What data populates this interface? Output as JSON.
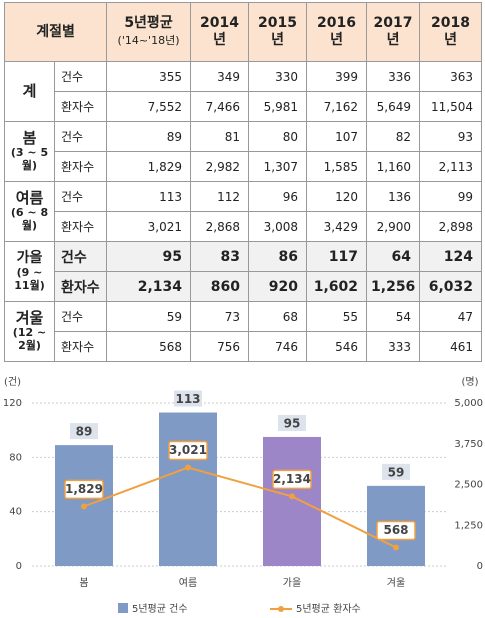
{
  "table": {
    "header": [
      "계절별",
      "5년평균",
      "('14~'18년)",
      "2014\n년",
      "2015\n년",
      "2016\n년",
      "2017\n년",
      "2018\n년"
    ],
    "groups": [
      {
        "season": "계",
        "rows": [
          {
            "label": "건수",
            "values": [
              "355",
              "349",
              "330",
              "399",
              "336",
              "363"
            ]
          },
          {
            "label": "환자수",
            "values": [
              "7,552",
              "7,466",
              "5,981",
              "7,162",
              "5,649",
              "11,504"
            ]
          }
        ]
      },
      {
        "season": "봄",
        "range": "(3 ~ 5월)",
        "rows": [
          {
            "label": "건수",
            "values": [
              "89",
              "81",
              "80",
              "107",
              "82",
              "93"
            ]
          },
          {
            "label": "환자수",
            "values": [
              "1,829",
              "2,982",
              "1,307",
              "1,585",
              "1,160",
              "2,113"
            ]
          }
        ]
      },
      {
        "season": "여름",
        "range": "(6 ~ 8월)",
        "rows": [
          {
            "label": "건수",
            "values": [
              "113",
              "112",
              "96",
              "120",
              "136",
              "99"
            ]
          },
          {
            "label": "환자수",
            "values": [
              "3,021",
              "2,868",
              "3,008",
              "3,429",
              "2,900",
              "2,898"
            ]
          }
        ]
      },
      {
        "season": "가을",
        "range": "(9 ~ 11월)",
        "highlight": true,
        "rows": [
          {
            "label": "건수",
            "values": [
              "95",
              "83",
              "86",
              "117",
              "64",
              "124"
            ]
          },
          {
            "label": "환자수",
            "values": [
              "2,134",
              "860",
              "920",
              "1,602",
              "1,256",
              "6,032"
            ]
          }
        ]
      },
      {
        "season": "겨울",
        "range": "(12 ~ 2월)",
        "rows": [
          {
            "label": "건수",
            "values": [
              "59",
              "73",
              "68",
              "55",
              "54",
              "47"
            ]
          },
          {
            "label": "환자수",
            "values": [
              "568",
              "756",
              "746",
              "546",
              "333",
              "461"
            ]
          }
        ]
      }
    ]
  },
  "chart_data": {
    "type": "bar-line",
    "categories": [
      "봄",
      "여름",
      "가을",
      "겨울"
    ],
    "y_unit": "(건)",
    "y2_unit": "(명)",
    "ylim": [
      0,
      120
    ],
    "yticks": [
      0,
      40,
      80,
      120
    ],
    "y2lim": [
      0,
      5000
    ],
    "y2ticks": [
      0,
      {
        "value": 1250,
        "label": "1,250"
      },
      {
        "value": 2500,
        "label": "2,500"
      },
      {
        "value": 3750,
        "label": "3,750"
      },
      {
        "value": 5000,
        "label": "5,000"
      }
    ],
    "grid": true,
    "series": [
      {
        "name": "5년평균 건수",
        "type": "bar",
        "color": "#7f9ac4",
        "colors": [
          "#7f9ac4",
          "#7f9ac4",
          "#9d86c8",
          "#7f9ac4"
        ],
        "values": [
          89,
          113,
          95,
          59
        ]
      },
      {
        "name": "5년평균 환자수",
        "type": "line",
        "axis": "y2",
        "color": "#f0a040",
        "values": [
          1829,
          3021,
          2134,
          568
        ],
        "value_labels": [
          "1,829",
          "3,021",
          "2,134",
          "568"
        ]
      }
    ]
  }
}
